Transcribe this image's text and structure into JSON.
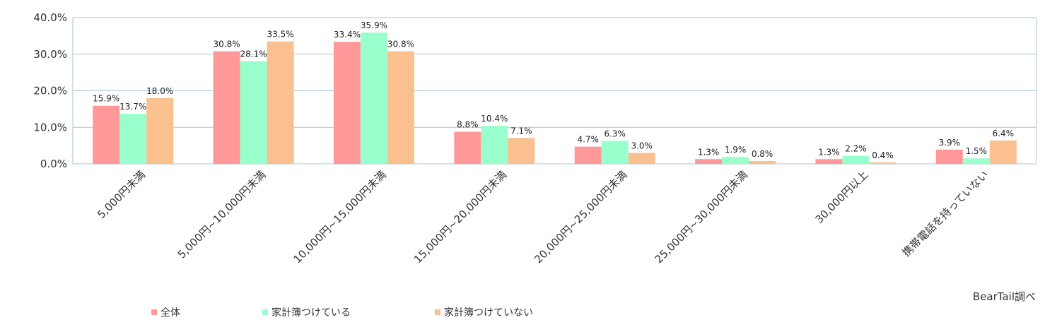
{
  "chart_data": {
    "type": "bar",
    "categories": [
      "5,000円未満",
      "5,000円~10,000円未満",
      "10,000円~15,000円未満",
      "15,000円~20,000円未満",
      "20,000円~25,000円未満",
      "25,000円~30,000円未満",
      "30,000円以上",
      "携帯電話を持っていない"
    ],
    "series": [
      {
        "name": "全体",
        "color": "#ff9999",
        "values": [
          15.9,
          30.8,
          33.4,
          8.8,
          4.7,
          1.3,
          1.3,
          3.9
        ],
        "labels": [
          "15.9%",
          "30.8%",
          "33.4%",
          "8.8%",
          "4.7%",
          "1.3%",
          "1.3%",
          "3.9%"
        ]
      },
      {
        "name": "家計簿つけている",
        "color": "#99ffcc",
        "values": [
          13.7,
          28.1,
          35.9,
          10.4,
          6.3,
          1.9,
          2.2,
          1.5
        ],
        "labels": [
          "13.7%",
          "28.1%",
          "35.9%",
          "10.4%",
          "6.3%",
          "1.9%",
          "2.2%",
          "1.5%"
        ]
      },
      {
        "name": "家計簿つけていない",
        "color": "#fac090",
        "values": [
          18.0,
          33.5,
          30.8,
          7.1,
          3.0,
          0.8,
          0.4,
          6.4
        ],
        "labels": [
          "18.0%",
          "33.5%",
          "30.8%",
          "7.1%",
          "3.0%",
          "0.8%",
          "0.4%",
          "6.4%"
        ]
      }
    ],
    "yticks": [
      0,
      10,
      20,
      30,
      40
    ],
    "ytick_labels": [
      "0.0%",
      "10.0%",
      "20.0%",
      "30.0%",
      "40.0%"
    ],
    "ylim": [
      0,
      40
    ],
    "grid": true,
    "gridColor": "#a9c7d6",
    "legend_position": "bottom-left",
    "source_note": "BearTail調べ"
  }
}
